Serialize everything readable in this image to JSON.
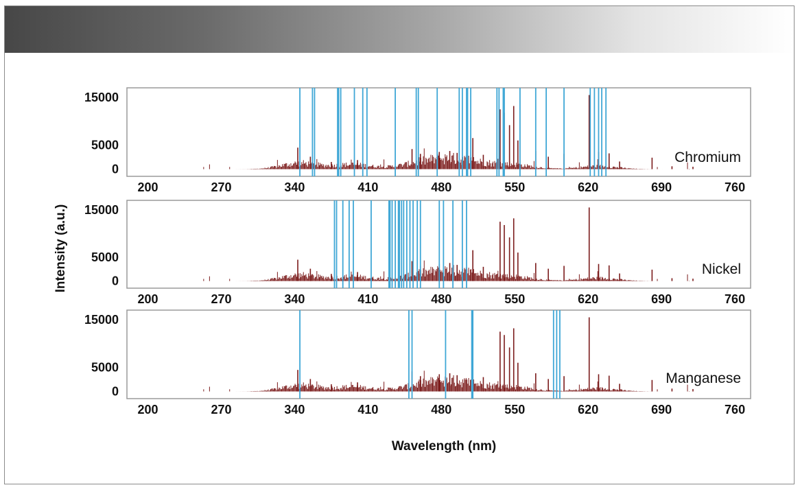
{
  "colors": {
    "spectrum": "#7a1a1a",
    "marker": "#3fa7d6",
    "panel_border": "#9a9a9a"
  },
  "chart_data": {
    "type": "line",
    "xlabel": "Wavelength (nm)",
    "ylabel": "Intensity (a.u.)",
    "xlim": [
      180,
      775
    ],
    "ylim": [
      -1500,
      17000
    ],
    "x_ticks": [
      200,
      270,
      340,
      410,
      480,
      550,
      620,
      690,
      760
    ],
    "y_ticks": [
      0,
      5000,
      15000
    ],
    "grid": false,
    "panels": [
      {
        "label": "Chromium",
        "marker_lines": [
          345,
          357,
          359,
          381,
          382,
          384,
          397,
          405,
          409,
          436,
          456,
          458,
          476,
          497,
          500,
          504,
          505,
          508,
          533,
          535,
          539,
          540,
          555,
          570,
          580,
          597,
          622,
          626,
          630,
          633,
          637
        ]
      },
      {
        "label": "Nickel",
        "marker_lines": [
          378,
          380,
          386,
          392,
          396,
          413,
          430,
          431,
          433,
          436,
          439,
          440,
          442,
          444,
          447,
          450,
          453,
          457,
          460,
          478,
          482,
          491,
          500,
          504
        ]
      },
      {
        "label": "Manganese",
        "marker_lines": [
          345,
          449,
          452,
          484,
          509,
          510,
          587,
          590,
          593
        ]
      }
    ],
    "peaks": [
      {
        "x": 343,
        "y": 4500
      },
      {
        "x": 355,
        "y": 2600
      },
      {
        "x": 375,
        "y": 1500
      },
      {
        "x": 400,
        "y": 1900
      },
      {
        "x": 452,
        "y": 4200
      },
      {
        "x": 460,
        "y": 3200
      },
      {
        "x": 478,
        "y": 3600
      },
      {
        "x": 488,
        "y": 3800
      },
      {
        "x": 495,
        "y": 3400
      },
      {
        "x": 510,
        "y": 6500
      },
      {
        "x": 520,
        "y": 3000
      },
      {
        "x": 536,
        "y": 12500
      },
      {
        "x": 540,
        "y": 11800
      },
      {
        "x": 545,
        "y": 9200
      },
      {
        "x": 549,
        "y": 13200
      },
      {
        "x": 553,
        "y": 6000
      },
      {
        "x": 570,
        "y": 3800
      },
      {
        "x": 582,
        "y": 2600
      },
      {
        "x": 597,
        "y": 3200
      },
      {
        "x": 621,
        "y": 15500
      },
      {
        "x": 630,
        "y": 3600
      },
      {
        "x": 640,
        "y": 3300
      },
      {
        "x": 650,
        "y": 1600
      },
      {
        "x": 681,
        "y": 2400
      },
      {
        "x": 700,
        "y": 600
      },
      {
        "x": 720,
        "y": 500
      }
    ]
  }
}
